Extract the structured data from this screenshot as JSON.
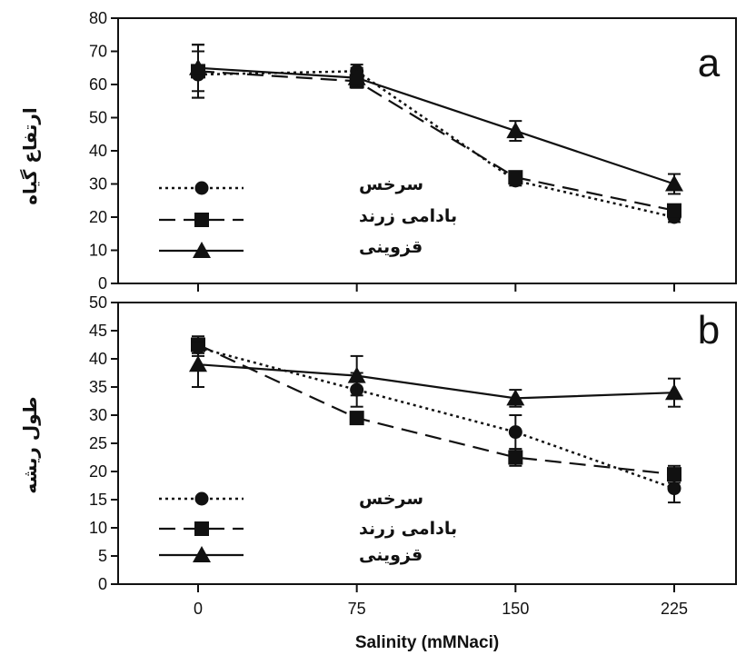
{
  "chart_data": [
    {
      "panel": "a",
      "type": "line",
      "ylabel": "ارتفاع گیاه",
      "xlabel": "",
      "x": [
        0,
        75,
        150,
        225
      ],
      "xlim": [
        0,
        225
      ],
      "ylim": [
        0,
        80
      ],
      "yticks": [
        0,
        10,
        20,
        30,
        40,
        50,
        60,
        70,
        80
      ],
      "legend_position": "left",
      "series": [
        {
          "name": "سرخس",
          "style": "dotted",
          "marker": "circle",
          "values": [
            63,
            64,
            31,
            20
          ],
          "errors": [
            7,
            2,
            1.5,
            1.5
          ]
        },
        {
          "name": "بادامی زرند",
          "style": "dashed",
          "marker": "square",
          "values": [
            64,
            61,
            32,
            22
          ],
          "errors": [
            8,
            2,
            1.5,
            1.5
          ]
        },
        {
          "name": "قزوینی",
          "style": "solid",
          "marker": "triangle",
          "values": [
            65,
            62,
            46,
            30
          ],
          "errors": [
            7,
            3,
            3,
            3
          ]
        }
      ]
    },
    {
      "panel": "b",
      "type": "line",
      "ylabel": "طول ریشه",
      "xlabel": "Salinity (mMNaci)",
      "x": [
        0,
        75,
        150,
        225
      ],
      "xlim": [
        0,
        225
      ],
      "ylim": [
        0,
        50
      ],
      "yticks": [
        0,
        5,
        10,
        15,
        20,
        25,
        30,
        35,
        40,
        45,
        50
      ],
      "legend_position": "left",
      "series": [
        {
          "name": "سرخس",
          "style": "dotted",
          "marker": "circle",
          "values": [
            42,
            34.5,
            27,
            17
          ],
          "errors": [
            1.5,
            3,
            3,
            2.5
          ]
        },
        {
          "name": "بادامی زرند",
          "style": "dashed",
          "marker": "square",
          "values": [
            42.5,
            29.5,
            22.5,
            19.5
          ],
          "errors": [
            1.5,
            1,
            1.5,
            1.5
          ]
        },
        {
          "name": "قزوینی",
          "style": "solid",
          "marker": "triangle",
          "values": [
            39,
            37,
            33,
            34
          ],
          "errors": [
            4,
            3.5,
            1.5,
            2.5
          ]
        }
      ]
    }
  ],
  "x_tick_labels": [
    "0",
    "75",
    "150",
    "225"
  ],
  "panel_letters": [
    "a",
    "b"
  ]
}
